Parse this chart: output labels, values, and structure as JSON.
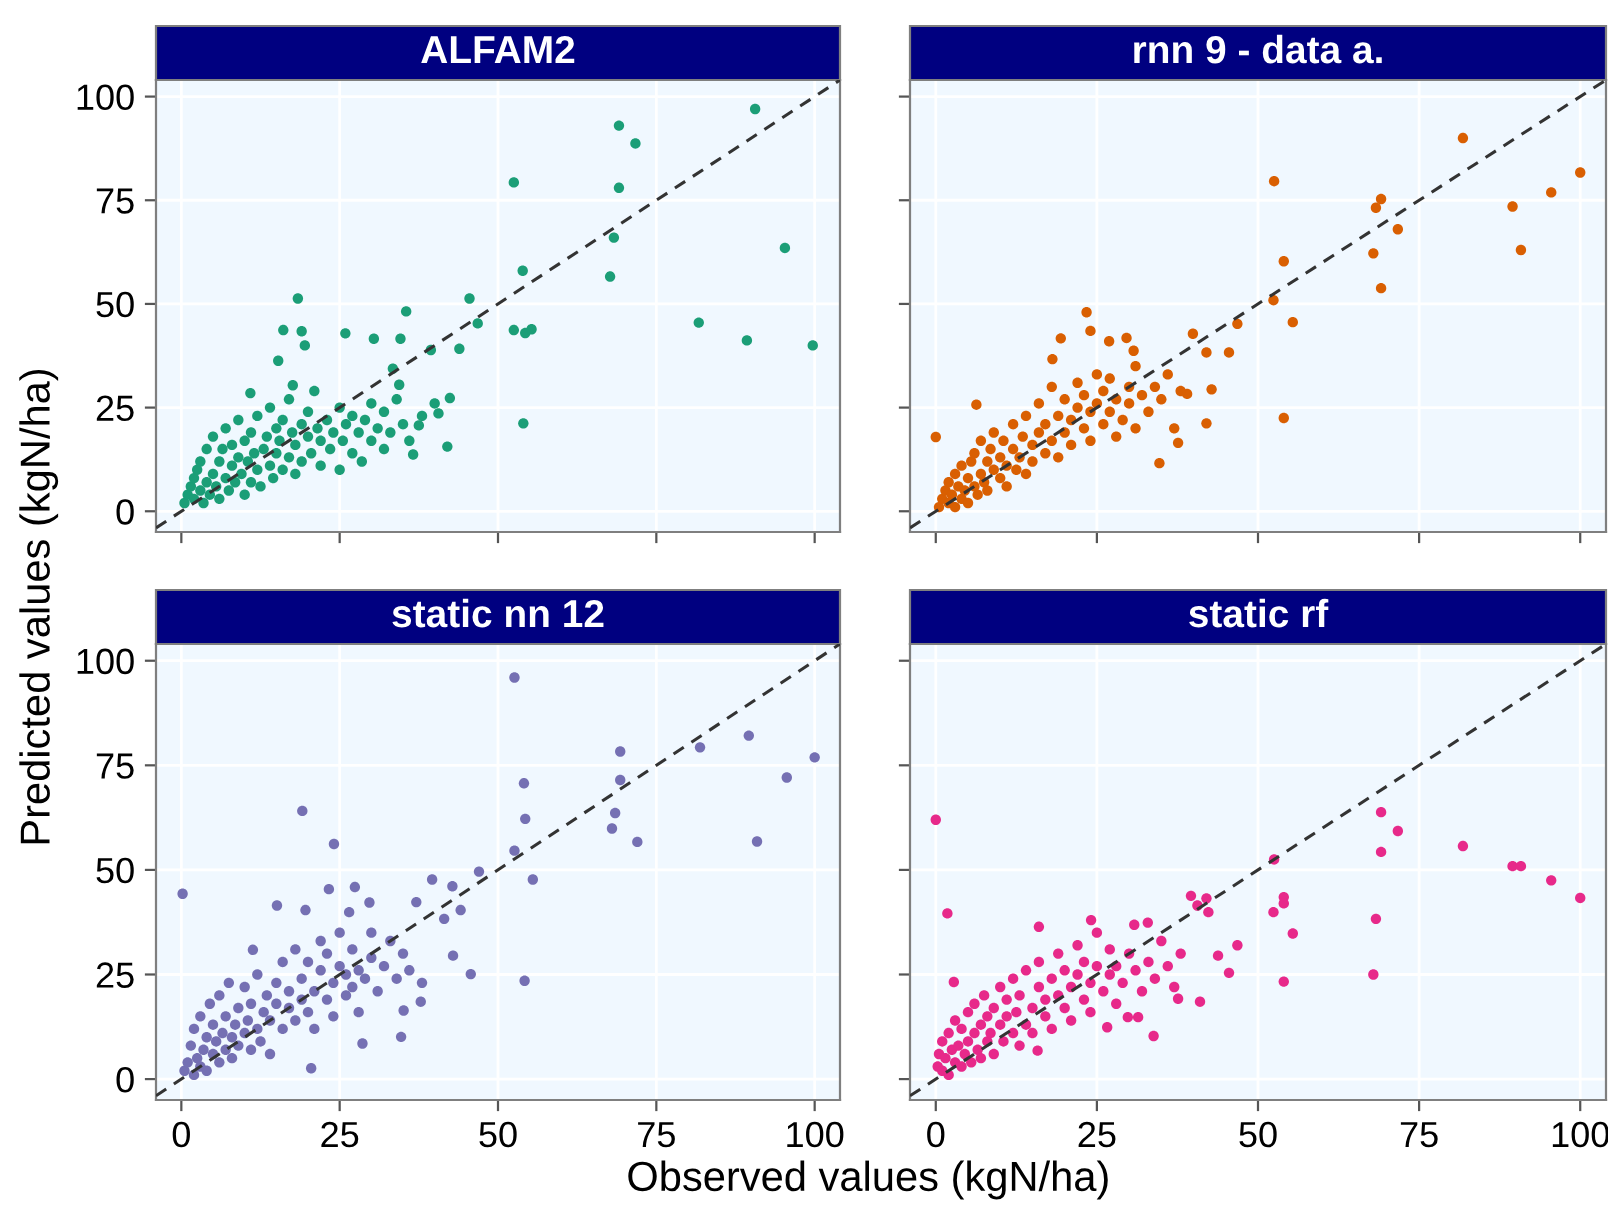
{
  "chart_data": [
    {
      "type": "scatter",
      "title": "ALFAM2",
      "ylabel": "Predicted values (kgN/ha)",
      "xlim": [
        -4,
        104
      ],
      "ylim": [
        -5,
        104
      ],
      "xticks": [
        0,
        25,
        50,
        75,
        100
      ],
      "yticks": [
        0,
        25,
        50,
        75,
        100
      ],
      "tick_labels": "y",
      "grid": true,
      "marker": "circle",
      "series": [
        {
          "color": "#1b9e77",
          "x": [
            90.6,
            69.1,
            71.7,
            69.1,
            52.5,
            68.3,
            53.9,
            67.7,
            95.3,
            81.7,
            89.3,
            99.7,
            52.5,
            54.3,
            55.3,
            54,
            45.5,
            46.8,
            18.4,
            35.5,
            42.4,
            42,
            36.6,
            39.4,
            43.9,
            16.1,
            19,
            19.5,
            15.3,
            25.9,
            30.4,
            34.6,
            33.4,
            34.4,
            37.5,
            40.6,
            10.9,
            17.6,
            0.5,
            1,
            1.5,
            2,
            2,
            2.5,
            3,
            3,
            3.5,
            4,
            4,
            4.5,
            5,
            5,
            5.5,
            6,
            6,
            6.5,
            7,
            7,
            7.5,
            8,
            8,
            8.5,
            9,
            9,
            9.5,
            10,
            10,
            10.5,
            11,
            11,
            11.5,
            12,
            12,
            12.5,
            13,
            13.5,
            14,
            14,
            14.5,
            15,
            15,
            15.5,
            16,
            16,
            17,
            17,
            17.5,
            18,
            18,
            19,
            19,
            20,
            20,
            20.5,
            21,
            21.5,
            22,
            22,
            23,
            23.5,
            24,
            25,
            25,
            25.5,
            26,
            27,
            27,
            28,
            28.5,
            29,
            30,
            30,
            31,
            32,
            32,
            33,
            34,
            35,
            36,
            38,
            40
          ],
          "values": [
            97,
            93,
            88.7,
            78,
            79.3,
            66,
            58,
            56.6,
            63.5,
            45.5,
            41.2,
            40,
            43.7,
            43,
            43.9,
            21.2,
            51.3,
            45.3,
            51.3,
            48.2,
            27.3,
            15.6,
            13.7,
            38.9,
            39.2,
            43.7,
            43.4,
            40,
            36.3,
            42.9,
            41.6,
            41.6,
            34.4,
            30.5,
            20.7,
            23.6,
            28.5,
            30.4,
            2,
            4,
            6,
            3,
            8,
            10,
            5,
            12,
            2,
            7,
            15,
            4,
            9,
            18,
            6,
            12,
            3,
            15,
            8,
            20,
            5,
            11,
            16,
            7,
            13,
            22,
            9,
            4,
            17,
            12,
            7,
            19,
            14,
            10,
            23,
            6,
            15,
            18,
            11,
            25,
            8,
            14,
            20,
            17,
            10,
            22,
            13,
            27,
            19,
            9,
            16,
            21,
            12,
            18,
            24,
            14,
            29,
            20,
            11,
            17,
            22,
            15,
            19,
            10,
            25,
            17,
            21,
            14,
            23,
            19,
            12,
            22,
            17,
            26,
            20,
            15,
            24,
            19,
            27,
            21,
            17,
            23,
            26
          ]
        },
        {
          "type": "line",
          "color": "#333333",
          "line_style": "dashed",
          "marker": "none",
          "x": [
            -4,
            104
          ],
          "values": [
            -4,
            104
          ]
        }
      ]
    },
    {
      "type": "scatter",
      "title": "rnn 9 - data a.",
      "xlim": [
        -4,
        104
      ],
      "ylim": [
        -5,
        104
      ],
      "xticks": [
        0,
        25,
        50,
        75,
        100
      ],
      "yticks": [
        0,
        25,
        50,
        75,
        100
      ],
      "tick_labels": false,
      "grid": true,
      "marker": "circle",
      "series": [
        {
          "color": "#d95f02",
          "x": [
            81.8,
            100,
            95.5,
            89.5,
            90.8,
            52.5,
            69.1,
            68.3,
            71.7,
            67.9,
            69.1,
            54,
            52.4,
            55.4,
            54,
            46.8,
            23.4,
            24,
            19.4,
            29.6,
            26.9,
            39.9,
            42,
            45.5,
            42.8,
            42,
            37.6,
            34.7,
            0,
            6.3,
            30.7,
            18.1,
            39,
            0.5,
            1,
            1.5,
            2,
            2,
            2.5,
            3,
            3,
            3.5,
            4,
            4,
            4.5,
            5,
            5,
            5.5,
            6,
            6,
            6.5,
            7,
            7,
            7.5,
            8,
            8,
            8.5,
            9,
            9,
            10,
            10,
            10.5,
            11,
            11,
            12,
            12,
            12.5,
            13,
            13.5,
            14,
            14,
            15,
            15,
            16,
            16,
            17,
            17,
            18,
            18,
            19,
            19,
            20,
            20,
            21,
            21,
            22,
            22,
            23,
            23,
            24,
            24,
            25,
            25,
            26,
            26,
            27,
            27,
            28,
            28,
            29,
            30,
            30,
            31,
            31,
            32,
            33,
            34,
            35,
            36,
            37,
            38
          ],
          "values": [
            90,
            81.7,
            76.9,
            73.5,
            63,
            79.6,
            75.3,
            73.2,
            68,
            62.2,
            53.8,
            60.3,
            50.9,
            45.6,
            22.5,
            45.2,
            48,
            43.5,
            41.7,
            41.8,
            41,
            42.8,
            38.3,
            38.3,
            29.4,
            21.2,
            16.5,
            11.6,
            17.9,
            25.7,
            38.7,
            36.7,
            28.3,
            1,
            3,
            5,
            2,
            7,
            4,
            9,
            1,
            6,
            3,
            11,
            5,
            8,
            2,
            12,
            6,
            14,
            4,
            9,
            17,
            7,
            12,
            5,
            15,
            10,
            19,
            8,
            13,
            17,
            11,
            6,
            15,
            21,
            10,
            13,
            18,
            9,
            23,
            16,
            12,
            19,
            26,
            14,
            21,
            17,
            30,
            23,
            13,
            19,
            27,
            22,
            16,
            25,
            31,
            20,
            28,
            17,
            24,
            26,
            33,
            21,
            29,
            24,
            32,
            18,
            27,
            22,
            30,
            26,
            20,
            35,
            28,
            24,
            30,
            27,
            33,
            20,
            29
          ]
        },
        {
          "type": "line",
          "color": "#333333",
          "line_style": "dashed",
          "marker": "none",
          "x": [
            -4,
            104
          ],
          "values": [
            -4,
            104
          ]
        }
      ]
    },
    {
      "type": "scatter",
      "title": "static nn 12",
      "xlabel": "Observed values (kgN/ha)",
      "xlim": [
        -4,
        104
      ],
      "ylim": [
        -5,
        104
      ],
      "xticks": [
        0,
        25,
        50,
        75,
        100
      ],
      "yticks": [
        0,
        25,
        50,
        75,
        100
      ],
      "grid": true,
      "marker": "circle",
      "series": [
        {
          "color": "#7570b3",
          "x": [
            52.6,
            89.6,
            81.9,
            100,
            95.6,
            69.3,
            69.3,
            68.5,
            68,
            72,
            90.9,
            54.1,
            54.3,
            52.6,
            55.5,
            54.2,
            47,
            45.7,
            19.1,
            24.1,
            0.2,
            23.3,
            27.4,
            15.1,
            19.6,
            26.5,
            29.7,
            39.6,
            42.8,
            44.1,
            37.1,
            41.5,
            42.9,
            37.8,
            34.7,
            35.1,
            20.5,
            11.3,
            28.6,
            0.5,
            1,
            1.5,
            2,
            2,
            2.5,
            3,
            3,
            3.5,
            4,
            4,
            4.5,
            5,
            5,
            5.5,
            6,
            6,
            6.5,
            7,
            7,
            7.5,
            8,
            8,
            8.5,
            9,
            9,
            10,
            10,
            10.5,
            11,
            11,
            12,
            12,
            12.5,
            13,
            13.5,
            14,
            14,
            15,
            15,
            16,
            16,
            17,
            17,
            18,
            18,
            19,
            19,
            20,
            20,
            21,
            21,
            22,
            22,
            23,
            23,
            24,
            24,
            25,
            25,
            26,
            26,
            27,
            27,
            28,
            28,
            29,
            30,
            30,
            31,
            32,
            33,
            34,
            35,
            36,
            38
          ],
          "values": [
            96,
            82.1,
            79.3,
            76.9,
            72.1,
            78.3,
            71.5,
            63.6,
            59.9,
            56.7,
            56.8,
            70.7,
            62.2,
            54.6,
            47.7,
            23.5,
            49.6,
            25.1,
            64.1,
            56.2,
            44.3,
            45.4,
            45.9,
            41.5,
            40.4,
            39.9,
            42.2,
            47.7,
            46.1,
            40.4,
            42.3,
            38.3,
            29.5,
            18.5,
            10.1,
            16.4,
            2.6,
            30.9,
            8.5,
            2,
            4,
            8,
            1,
            12,
            5,
            3,
            15,
            7,
            10,
            2,
            18,
            6,
            13,
            9,
            4,
            20,
            11,
            7,
            15,
            23,
            10,
            5,
            13,
            17,
            8,
            11,
            22,
            14,
            7,
            18,
            12,
            25,
            9,
            16,
            20,
            6,
            14,
            18,
            23,
            12,
            28,
            17,
            21,
            14,
            31,
            24,
            19,
            16,
            28,
            21,
            12,
            26,
            33,
            19,
            30,
            23,
            15,
            27,
            35,
            20,
            25,
            31,
            22,
            26,
            16,
            24,
            29,
            35,
            21,
            27,
            33,
            24,
            30,
            26,
            23
          ]
        },
        {
          "type": "line",
          "color": "#333333",
          "line_style": "dashed",
          "marker": "none",
          "x": [
            -4,
            104
          ],
          "values": [
            -4,
            104
          ]
        }
      ]
    },
    {
      "type": "scatter",
      "title": "static rf",
      "xlim": [
        -4,
        104
      ],
      "ylim": [
        -5,
        104
      ],
      "xticks": [
        0,
        25,
        50,
        75,
        100
      ],
      "yticks": [
        0,
        25,
        50,
        75,
        100
      ],
      "tick_labels": "x",
      "grid": true,
      "marker": "circle",
      "series": [
        {
          "color": "#e7298a",
          "x": [
            0,
            1.8,
            69.1,
            71.7,
            69.1,
            81.8,
            89.5,
            90.8,
            95.5,
            100,
            52.5,
            54,
            54,
            52.4,
            55.4,
            54,
            68.3,
            67.9,
            46.8,
            45.5,
            43.8,
            39.6,
            42,
            42.3,
            40.6,
            24.1,
            32.9,
            30.8,
            16,
            41,
            37.6,
            33.8,
            29.8,
            31.4,
            26.6,
            15.8,
            2.8,
            0.3,
            0.5,
            1,
            1,
            1.5,
            2,
            2,
            2.5,
            3,
            3,
            3.5,
            4,
            4,
            4.5,
            5,
            5,
            5.5,
            6,
            6,
            6.5,
            7,
            7,
            7.5,
            8,
            8,
            8.5,
            9,
            9,
            10,
            10,
            10.5,
            11,
            11,
            12,
            12,
            12.5,
            13,
            13,
            14,
            14,
            15,
            15,
            16,
            16,
            17,
            17,
            18,
            18,
            19,
            19,
            20,
            20,
            21,
            21,
            22,
            22,
            23,
            23,
            24,
            24,
            25,
            25,
            26,
            27,
            27,
            28,
            28,
            29,
            30,
            31,
            32,
            33,
            34,
            35,
            36,
            37,
            38
          ],
          "values": [
            62,
            39.6,
            63.8,
            59.3,
            54.3,
            55.7,
            50.9,
            50.9,
            47.5,
            43.3,
            52.5,
            43.5,
            42,
            39.9,
            34.8,
            23.3,
            38.3,
            25,
            32,
            25.4,
            29.5,
            43.8,
            43.2,
            39.9,
            41.5,
            38,
            37.4,
            36.9,
            36.4,
            18.5,
            19.2,
            10.3,
            14.8,
            14.8,
            12.4,
            6.8,
            23.2,
            3,
            6,
            2,
            9,
            5,
            11,
            1,
            7,
            4,
            14,
            8,
            3,
            12,
            6,
            16,
            9,
            4,
            11,
            18,
            7,
            13,
            5,
            20,
            9,
            15,
            11,
            6,
            17,
            13,
            22,
            9,
            15,
            19,
            11,
            24,
            16,
            8,
            20,
            13,
            26,
            17,
            11,
            22,
            28,
            15,
            19,
            24,
            12,
            20,
            30,
            17,
            26,
            22,
            14,
            25,
            32,
            19,
            28,
            23,
            16,
            27,
            35,
            21,
            25,
            31,
            18,
            27,
            23,
            30,
            26,
            21,
            28,
            24,
            33,
            27,
            22,
            30
          ]
        },
        {
          "type": "line",
          "color": "#333333",
          "line_style": "dashed",
          "marker": "none",
          "x": [
            -4,
            104
          ],
          "values": [
            -4,
            104
          ]
        }
      ]
    }
  ]
}
